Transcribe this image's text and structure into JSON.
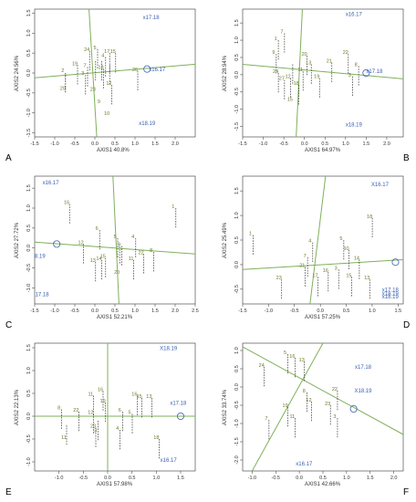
{
  "colors": {
    "green": "#7fb05a",
    "blue": "#3a5fb0",
    "olive": "#6b7a2a",
    "axis": "#333333"
  },
  "chart_data": [
    {
      "panel": "A",
      "type": "scatter",
      "xlabel": "AXIS1 40.8%",
      "ylabel": "AXIS2 24.56%",
      "xlim": [
        -1.5,
        2.5
      ],
      "ylim": [
        -1.6,
        1.6
      ],
      "xticks": [
        "-1.5",
        "-1.0",
        "-0.5",
        "0.0",
        "0.5",
        "1.0",
        "1.5",
        "2.0"
      ],
      "yticks": [
        "-1.5",
        "-1.0",
        "-0.5",
        "0.0",
        "0.5",
        "1.0",
        "1.5"
      ],
      "gen_line": [
        [
          -1.5,
          -0.12
        ],
        [
          2.5,
          0.22
        ]
      ],
      "ortho_line": [
        [
          -0.15,
          1.65
        ],
        [
          0.05,
          -1.65
        ]
      ],
      "circle": [
        1.3,
        0.1
      ],
      "env_labels": [
        {
          "label": "x17.18",
          "x": 1.4,
          "y": 1.35
        },
        {
          "label": "x16.17",
          "x": 1.55,
          "y": 0.05
        },
        {
          "label": "x18.19",
          "x": 1.3,
          "y": -1.3
        }
      ],
      "points": [
        {
          "label": "20",
          "x": -0.8,
          "y": -0.42,
          "top": 0.0
        },
        {
          "label": "2",
          "x": -0.8,
          "y": 0.02,
          "top": 0.0
        },
        {
          "label": "19",
          "x": -0.5,
          "y": 0.2,
          "top": 0.2
        },
        {
          "label": "3",
          "x": -0.3,
          "y": -0.05,
          "top": -0.05
        },
        {
          "label": "24",
          "x": -0.2,
          "y": 0.55,
          "top": 0.55
        },
        {
          "label": "5",
          "x": 0.0,
          "y": 0.6,
          "top": 0.6
        },
        {
          "label": "23",
          "x": -0.05,
          "y": -0.45,
          "top": 0.3
        },
        {
          "label": "9",
          "x": 0.1,
          "y": -0.75,
          "top": 0.3
        },
        {
          "label": "4",
          "x": 0.2,
          "y": 0.4,
          "top": 0.4
        },
        {
          "label": "17",
          "x": 0.3,
          "y": 0.5,
          "top": 0.5
        },
        {
          "label": "15",
          "x": 0.45,
          "y": 0.5,
          "top": 0.5
        },
        {
          "label": "10",
          "x": 0.3,
          "y": -1.05,
          "top": 0.2
        },
        {
          "label": "18",
          "x": 0.15,
          "y": 0.1,
          "top": 0.1
        },
        {
          "label": "7",
          "x": -0.25,
          "y": 0.15,
          "top": 0.15
        },
        {
          "label": "12",
          "x": 0.35,
          "y": -0.3,
          "top": -0.3
        },
        {
          "label": "26",
          "x": 1.0,
          "y": 0.05,
          "top": 0.05
        }
      ]
    },
    {
      "panel": "B",
      "type": "scatter",
      "xlabel": "AXIS1 64.97%",
      "ylabel": "AXIS2 28.94%",
      "xlim": [
        -1.5,
        2.4
      ],
      "ylim": [
        -1.8,
        1.9
      ],
      "xticks": [
        "-1.5",
        "-1.0",
        "-0.5",
        "0.0",
        "0.5",
        "1.0",
        "1.5",
        "2.0"
      ],
      "yticks": [
        "-1.5",
        "-1.0",
        "-0.5",
        "0.0",
        "0.5",
        "1.0",
        "1.5"
      ],
      "gen_line": [
        [
          -1.5,
          0.3
        ],
        [
          2.4,
          -0.12
        ]
      ],
      "ortho_line": [
        [
          -0.05,
          1.9
        ],
        [
          -0.2,
          -1.8
        ]
      ],
      "circle": [
        1.5,
        0.05
      ],
      "env_labels": [
        {
          "label": "x16.17",
          "x": 1.2,
          "y": 1.7
        },
        {
          "label": "x17.18",
          "x": 1.7,
          "y": 0.05
        },
        {
          "label": "x18.19",
          "x": 1.2,
          "y": -1.5
        }
      ],
      "points": [
        {
          "label": "1",
          "x": -0.7,
          "y": 1.0,
          "top": 1.0
        },
        {
          "label": "7",
          "x": -0.55,
          "y": 1.2,
          "top": 1.2
        },
        {
          "label": "9",
          "x": -0.75,
          "y": 0.6,
          "top": 0.6
        },
        {
          "label": "24",
          "x": -0.7,
          "y": 0.05,
          "top": 0.05
        },
        {
          "label": "27",
          "x": -0.55,
          "y": -0.15,
          "top": -0.15
        },
        {
          "label": "12",
          "x": -0.4,
          "y": -0.1,
          "top": -0.1
        },
        {
          "label": "15",
          "x": -0.35,
          "y": -0.75,
          "top": 0.3
        },
        {
          "label": "11",
          "x": -0.1,
          "y": 0.1,
          "top": 0.1
        },
        {
          "label": "20",
          "x": 0.0,
          "y": 0.55,
          "top": 0.55
        },
        {
          "label": "13",
          "x": 0.1,
          "y": 0.3,
          "top": 0.3
        },
        {
          "label": "19",
          "x": 0.3,
          "y": -0.1,
          "top": -0.1
        },
        {
          "label": "21",
          "x": 0.6,
          "y": 0.35,
          "top": 0.35
        },
        {
          "label": "22",
          "x": 1.0,
          "y": 0.6,
          "top": 0.6
        },
        {
          "label": "8",
          "x": 1.25,
          "y": 0.25,
          "top": 0.25
        },
        {
          "label": "3",
          "x": 1.1,
          "y": -0.05,
          "top": -0.05
        },
        {
          "label": "18",
          "x": -0.2,
          "y": -0.3,
          "top": -0.3
        }
      ]
    },
    {
      "panel": "C",
      "type": "scatter",
      "xlabel": "AXIS1 52.21%",
      "ylabel": "AXIS2 27.72%",
      "xlim": [
        -1.5,
        2.5
      ],
      "ylim": [
        -1.4,
        1.8
      ],
      "xticks": [
        "-1.5",
        "-1.0",
        "-0.5",
        "0.0",
        "0.5",
        "1.0",
        "1.5",
        "2.0",
        "2.5"
      ],
      "yticks": [
        "-1.0",
        "-0.5",
        "0.0",
        "0.5",
        "1.0",
        "1.5"
      ],
      "gen_line": [
        [
          -1.5,
          0.15
        ],
        [
          2.5,
          -0.15
        ]
      ],
      "ortho_line": [
        [
          0.45,
          1.8
        ],
        [
          0.6,
          -1.4
        ]
      ],
      "circle": [
        -0.95,
        0.1
      ],
      "env_labels": [
        {
          "label": "x16.17",
          "x": -1.1,
          "y": 1.6
        },
        {
          "label": "X18.19",
          "x": -1.45,
          "y": -0.25
        },
        {
          "label": "x17.18",
          "x": -1.35,
          "y": -1.2
        }
      ],
      "points": [
        {
          "label": "16",
          "x": -0.7,
          "y": 1.1,
          "top": 1.1
        },
        {
          "label": "12",
          "x": -0.35,
          "y": 0.1,
          "top": 0.1
        },
        {
          "label": "6",
          "x": 0.05,
          "y": 0.45,
          "top": 0.45
        },
        {
          "label": "13",
          "x": -0.05,
          "y": -0.35,
          "top": -0.35
        },
        {
          "label": "14",
          "x": 0.1,
          "y": -0.3,
          "top": -0.3
        },
        {
          "label": "15",
          "x": 0.2,
          "y": -0.25,
          "top": -0.25
        },
        {
          "label": "5",
          "x": 0.5,
          "y": 0.25,
          "top": 0.25
        },
        {
          "label": "20",
          "x": 0.55,
          "y": -0.65,
          "top": 0.1
        },
        {
          "label": "3",
          "x": 0.6,
          "y": 0.05,
          "top": 0.05
        },
        {
          "label": "4",
          "x": 0.95,
          "y": 0.25,
          "top": 0.25
        },
        {
          "label": "22",
          "x": 1.15,
          "y": -0.15,
          "top": -0.15
        },
        {
          "label": "11",
          "x": 0.9,
          "y": -0.3,
          "top": -0.3
        },
        {
          "label": "8",
          "x": 1.4,
          "y": -0.1,
          "top": -0.1
        },
        {
          "label": "1",
          "x": 1.95,
          "y": 1.0,
          "top": 1.0
        }
      ]
    },
    {
      "panel": "D",
      "type": "scatter",
      "xlabel": "AXIS1 57.25%",
      "ylabel": "AXIS2 25.49%",
      "xlim": [
        -1.5,
        1.6
      ],
      "ylim": [
        -0.8,
        1.8
      ],
      "xticks": [
        "-1.5",
        "-1.0",
        "-0.5",
        "0.0",
        "0.5",
        "1.0",
        "1.5"
      ],
      "yticks": [
        "-0.5",
        "0.0",
        "0.5",
        "1.0",
        "1.5"
      ],
      "gen_line": [
        [
          -1.5,
          -0.1
        ],
        [
          1.6,
          0.1
        ]
      ],
      "ortho_line": [
        [
          0.1,
          1.8
        ],
        [
          -0.2,
          -0.8
        ]
      ],
      "circle": [
        1.45,
        0.05
      ],
      "env_labels": [
        {
          "label": "X16.17",
          "x": 1.15,
          "y": 1.6
        },
        {
          "label": "x17.18",
          "x": 1.35,
          "y": -0.55
        },
        {
          "label": "x18.19",
          "x": 1.35,
          "y": -0.62
        },
        {
          "label": "x18.19",
          "x": 1.35,
          "y": -0.69
        }
      ],
      "points": [
        {
          "label": "1",
          "x": -1.35,
          "y": 0.6,
          "top": 0.6
        },
        {
          "label": "23",
          "x": -0.8,
          "y": -0.3,
          "top": -0.3
        },
        {
          "label": "7",
          "x": -0.3,
          "y": 0.15,
          "top": 0.15
        },
        {
          "label": "21",
          "x": -0.35,
          "y": -0.05,
          "top": -0.05
        },
        {
          "label": "4",
          "x": -0.2,
          "y": 0.45,
          "top": 0.45
        },
        {
          "label": "17",
          "x": -0.1,
          "y": -0.25,
          "top": -0.25
        },
        {
          "label": "16",
          "x": 0.1,
          "y": -0.15,
          "top": -0.15
        },
        {
          "label": "3",
          "x": 0.3,
          "y": -0.1,
          "top": -0.1
        },
        {
          "label": "5",
          "x": 0.4,
          "y": 0.5,
          "top": 0.5
        },
        {
          "label": "10",
          "x": 0.5,
          "y": 0.3,
          "top": 0.3
        },
        {
          "label": "15",
          "x": 0.55,
          "y": -0.25,
          "top": -0.25
        },
        {
          "label": "14",
          "x": 0.7,
          "y": 0.1,
          "top": 0.1
        },
        {
          "label": "13",
          "x": 0.9,
          "y": -0.3,
          "top": -0.3
        },
        {
          "label": "18",
          "x": 0.95,
          "y": 0.95,
          "top": 0.95
        }
      ]
    },
    {
      "panel": "E",
      "type": "scatter",
      "xlabel": "AXIS1 57.98%",
      "ylabel": "AXIS2 22.13%",
      "xlim": [
        -1.5,
        1.8
      ],
      "ylim": [
        -1.2,
        1.6
      ],
      "xticks": [
        "-1.0",
        "-0.5",
        "0.0",
        "0.5",
        "1.0",
        "1.5"
      ],
      "yticks": [
        "-1.0",
        "-0.5",
        "0.0",
        "0.5",
        "1.0",
        "1.5"
      ],
      "gen_line": [
        [
          -1.5,
          0.0
        ],
        [
          1.8,
          0.0
        ]
      ],
      "ortho_line": [
        [
          0.0,
          1.6
        ],
        [
          0.0,
          -1.2
        ]
      ],
      "circle": [
        1.5,
        0.0
      ],
      "env_labels": [
        {
          "label": "X18.19",
          "x": 1.25,
          "y": 1.45
        },
        {
          "label": "x17.18",
          "x": 1.45,
          "y": 0.25
        },
        {
          "label": "x16.17",
          "x": 1.25,
          "y": -1.0
        }
      ],
      "points": [
        {
          "label": "8",
          "x": -1.0,
          "y": 0.15,
          "top": 0.15
        },
        {
          "label": "11",
          "x": -0.9,
          "y": -0.5,
          "top": -0.2
        },
        {
          "label": "22",
          "x": -0.65,
          "y": 0.1,
          "top": 0.1
        },
        {
          "label": "12",
          "x": -0.35,
          "y": 0.05,
          "top": 0.05
        },
        {
          "label": "11",
          "x": -0.35,
          "y": 0.45,
          "top": 0.45
        },
        {
          "label": "16",
          "x": -0.15,
          "y": 0.55,
          "top": 0.55
        },
        {
          "label": "23",
          "x": -0.3,
          "y": -0.25,
          "top": -0.25
        },
        {
          "label": "19",
          "x": -0.1,
          "y": 0.3,
          "top": 0.3
        },
        {
          "label": "3",
          "x": -0.25,
          "y": -0.35,
          "top": -0.1
        },
        {
          "label": "6",
          "x": 0.25,
          "y": 0.1,
          "top": 0.1
        },
        {
          "label": "4",
          "x": 0.2,
          "y": -0.3,
          "top": -0.3
        },
        {
          "label": "5",
          "x": 0.45,
          "y": 0.05,
          "top": 0.05
        },
        {
          "label": "16",
          "x": 0.55,
          "y": 0.45,
          "top": 0.45
        },
        {
          "label": "15",
          "x": 0.65,
          "y": 0.4,
          "top": 0.4
        },
        {
          "label": "13",
          "x": 0.85,
          "y": 0.4,
          "top": 0.4
        },
        {
          "label": "18",
          "x": 1.0,
          "y": -0.5,
          "top": -0.5
        }
      ]
    },
    {
      "panel": "F",
      "type": "scatter",
      "xlabel": "AXIS1 42.66%",
      "ylabel": "AXIS2 33.74%",
      "xlim": [
        -1.2,
        2.2
      ],
      "ylim": [
        -2.3,
        1.2
      ],
      "xticks": [
        "-1.0",
        "-0.5",
        "0.0",
        "0.5",
        "1.0",
        "1.5",
        "2.0"
      ],
      "yticks": [
        "-2.0",
        "-1.5",
        "-1.0",
        "-0.5",
        "0.0",
        "0.5",
        "1.0"
      ],
      "gen_line": [
        [
          -1.2,
          1.1
        ],
        [
          2.2,
          -1.3
        ]
      ],
      "ortho_line": [
        [
          0.5,
          1.2
        ],
        [
          -1.0,
          -2.3
        ]
      ],
      "circle": [
        1.15,
        -0.6
      ],
      "env_labels": [
        {
          "label": "x17.18",
          "x": 1.35,
          "y": 0.5
        },
        {
          "label": "X18.19",
          "x": 1.35,
          "y": -0.15
        },
        {
          "label": "x16.17",
          "x": 0.1,
          "y": -2.15
        }
      ],
      "points": [
        {
          "label": "24",
          "x": -0.8,
          "y": 0.55,
          "top": 0.55
        },
        {
          "label": "5",
          "x": -0.3,
          "y": 0.9,
          "top": 0.9
        },
        {
          "label": "16",
          "x": -0.15,
          "y": 0.8,
          "top": 0.8
        },
        {
          "label": "13",
          "x": 0.05,
          "y": 0.7,
          "top": 0.7
        },
        {
          "label": "7",
          "x": -0.7,
          "y": -0.9,
          "top": -0.9
        },
        {
          "label": "19",
          "x": -0.3,
          "y": -0.55,
          "top": -0.55
        },
        {
          "label": "11",
          "x": -0.15,
          "y": -0.85,
          "top": -0.85
        },
        {
          "label": "8",
          "x": 0.1,
          "y": -0.15,
          "top": -0.15
        },
        {
          "label": "12",
          "x": 0.2,
          "y": -0.4,
          "top": -0.4
        },
        {
          "label": "22",
          "x": 0.75,
          "y": -0.1,
          "top": -0.1
        },
        {
          "label": "23",
          "x": 0.6,
          "y": -0.5,
          "top": -0.5
        },
        {
          "label": "3",
          "x": 0.75,
          "y": -0.85,
          "top": -0.85
        }
      ]
    }
  ]
}
